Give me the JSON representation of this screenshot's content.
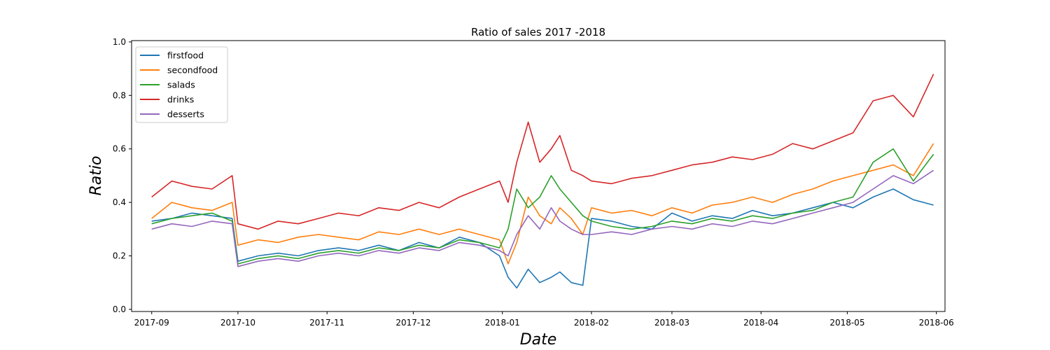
{
  "chart_data": {
    "type": "line",
    "title": "Ratio of sales 2017 -2018",
    "xlabel": "Date",
    "ylabel": "Ratio",
    "x_range": [
      "2017-08-25",
      "2018-06-04"
    ],
    "x_ticks": [
      "2017-09",
      "2017-10",
      "2017-11",
      "2017-12",
      "2018-01",
      "2018-02",
      "2018-03",
      "2018-04",
      "2018-05",
      "2018-06"
    ],
    "ylim": [
      -0.008,
      1.005
    ],
    "y_ticks": [
      "0.0",
      "0.2",
      "0.4",
      "0.6",
      "0.8",
      "1.0"
    ],
    "grid": false,
    "legend_position": "top-left",
    "series": [
      {
        "name": "firstfood",
        "color": "#1f77b4",
        "x": [
          "2017-09-01",
          "2017-09-08",
          "2017-09-15",
          "2017-09-22",
          "2017-09-29",
          "2017-10-01",
          "2017-10-08",
          "2017-10-15",
          "2017-10-22",
          "2017-10-29",
          "2017-11-05",
          "2017-11-12",
          "2017-11-19",
          "2017-11-26",
          "2017-12-03",
          "2017-12-10",
          "2017-12-17",
          "2017-12-24",
          "2017-12-31",
          "2018-01-03",
          "2018-01-06",
          "2018-01-10",
          "2018-01-14",
          "2018-01-18",
          "2018-01-21",
          "2018-01-25",
          "2018-01-29",
          "2018-02-01",
          "2018-02-08",
          "2018-02-15",
          "2018-02-22",
          "2018-03-01",
          "2018-03-08",
          "2018-03-15",
          "2018-03-22",
          "2018-03-29",
          "2018-04-05",
          "2018-04-12",
          "2018-04-19",
          "2018-04-26",
          "2018-05-03",
          "2018-05-10",
          "2018-05-17",
          "2018-05-24",
          "2018-05-31"
        ],
        "values": [
          0.33,
          0.34,
          0.36,
          0.35,
          0.34,
          0.18,
          0.2,
          0.21,
          0.2,
          0.22,
          0.23,
          0.22,
          0.24,
          0.22,
          0.25,
          0.23,
          0.27,
          0.25,
          0.2,
          0.12,
          0.08,
          0.15,
          0.1,
          0.12,
          0.14,
          0.1,
          0.09,
          0.34,
          0.33,
          0.31,
          0.3,
          0.36,
          0.33,
          0.35,
          0.34,
          0.37,
          0.35,
          0.36,
          0.38,
          0.4,
          0.38,
          0.42,
          0.45,
          0.41,
          0.39
        ]
      },
      {
        "name": "secondfood",
        "color": "#ff7f0e",
        "x": [
          "2017-09-01",
          "2017-09-08",
          "2017-09-15",
          "2017-09-22",
          "2017-09-29",
          "2017-10-01",
          "2017-10-08",
          "2017-10-15",
          "2017-10-22",
          "2017-10-29",
          "2017-11-05",
          "2017-11-12",
          "2017-11-19",
          "2017-11-26",
          "2017-12-03",
          "2017-12-10",
          "2017-12-17",
          "2017-12-24",
          "2017-12-31",
          "2018-01-03",
          "2018-01-06",
          "2018-01-10",
          "2018-01-14",
          "2018-01-18",
          "2018-01-21",
          "2018-01-25",
          "2018-01-29",
          "2018-02-01",
          "2018-02-08",
          "2018-02-15",
          "2018-02-22",
          "2018-03-01",
          "2018-03-08",
          "2018-03-15",
          "2018-03-22",
          "2018-03-29",
          "2018-04-05",
          "2018-04-12",
          "2018-04-19",
          "2018-04-26",
          "2018-05-03",
          "2018-05-10",
          "2018-05-17",
          "2018-05-24",
          "2018-05-31"
        ],
        "values": [
          0.34,
          0.4,
          0.38,
          0.37,
          0.4,
          0.24,
          0.26,
          0.25,
          0.27,
          0.28,
          0.27,
          0.26,
          0.29,
          0.28,
          0.3,
          0.28,
          0.3,
          0.28,
          0.26,
          0.17,
          0.25,
          0.42,
          0.35,
          0.32,
          0.38,
          0.34,
          0.28,
          0.38,
          0.36,
          0.37,
          0.35,
          0.38,
          0.36,
          0.39,
          0.4,
          0.42,
          0.4,
          0.43,
          0.45,
          0.48,
          0.5,
          0.52,
          0.54,
          0.5,
          0.62
        ]
      },
      {
        "name": "salads",
        "color": "#2ca02c",
        "x": [
          "2017-09-01",
          "2017-09-08",
          "2017-09-15",
          "2017-09-22",
          "2017-09-29",
          "2017-10-01",
          "2017-10-08",
          "2017-10-15",
          "2017-10-22",
          "2017-10-29",
          "2017-11-05",
          "2017-11-12",
          "2017-11-19",
          "2017-11-26",
          "2017-12-03",
          "2017-12-10",
          "2017-12-17",
          "2017-12-24",
          "2017-12-31",
          "2018-01-03",
          "2018-01-06",
          "2018-01-10",
          "2018-01-14",
          "2018-01-18",
          "2018-01-21",
          "2018-01-25",
          "2018-01-29",
          "2018-02-01",
          "2018-02-08",
          "2018-02-15",
          "2018-02-22",
          "2018-03-01",
          "2018-03-08",
          "2018-03-15",
          "2018-03-22",
          "2018-03-29",
          "2018-04-05",
          "2018-04-12",
          "2018-04-19",
          "2018-04-26",
          "2018-05-03",
          "2018-05-10",
          "2018-05-17",
          "2018-05-24",
          "2018-05-31"
        ],
        "values": [
          0.32,
          0.34,
          0.35,
          0.36,
          0.33,
          0.17,
          0.19,
          0.2,
          0.19,
          0.21,
          0.22,
          0.21,
          0.23,
          0.22,
          0.24,
          0.23,
          0.26,
          0.25,
          0.23,
          0.3,
          0.45,
          0.38,
          0.42,
          0.5,
          0.45,
          0.4,
          0.35,
          0.33,
          0.31,
          0.3,
          0.31,
          0.33,
          0.32,
          0.34,
          0.33,
          0.35,
          0.34,
          0.36,
          0.37,
          0.4,
          0.42,
          0.55,
          0.6,
          0.48,
          0.58
        ]
      },
      {
        "name": "drinks",
        "color": "#d62728",
        "x": [
          "2017-09-01",
          "2017-09-08",
          "2017-09-15",
          "2017-09-22",
          "2017-09-29",
          "2017-10-01",
          "2017-10-08",
          "2017-10-15",
          "2017-10-22",
          "2017-10-29",
          "2017-11-05",
          "2017-11-12",
          "2017-11-19",
          "2017-11-26",
          "2017-12-03",
          "2017-12-10",
          "2017-12-17",
          "2017-12-24",
          "2017-12-31",
          "2018-01-03",
          "2018-01-06",
          "2018-01-10",
          "2018-01-14",
          "2018-01-18",
          "2018-01-21",
          "2018-01-25",
          "2018-01-29",
          "2018-02-01",
          "2018-02-08",
          "2018-02-15",
          "2018-02-22",
          "2018-03-01",
          "2018-03-08",
          "2018-03-15",
          "2018-03-22",
          "2018-03-29",
          "2018-04-05",
          "2018-04-12",
          "2018-04-19",
          "2018-04-26",
          "2018-05-03",
          "2018-05-10",
          "2018-05-17",
          "2018-05-24",
          "2018-05-31"
        ],
        "values": [
          0.42,
          0.48,
          0.46,
          0.45,
          0.5,
          0.32,
          0.3,
          0.33,
          0.32,
          0.34,
          0.36,
          0.35,
          0.38,
          0.37,
          0.4,
          0.38,
          0.42,
          0.45,
          0.48,
          0.4,
          0.55,
          0.7,
          0.55,
          0.6,
          0.65,
          0.52,
          0.5,
          0.48,
          0.47,
          0.49,
          0.5,
          0.52,
          0.54,
          0.55,
          0.57,
          0.56,
          0.58,
          0.62,
          0.6,
          0.63,
          0.66,
          0.78,
          0.8,
          0.72,
          0.88
        ]
      },
      {
        "name": "desserts",
        "color": "#9467bd",
        "x": [
          "2017-09-01",
          "2017-09-08",
          "2017-09-15",
          "2017-09-22",
          "2017-09-29",
          "2017-10-01",
          "2017-10-08",
          "2017-10-15",
          "2017-10-22",
          "2017-10-29",
          "2017-11-05",
          "2017-11-12",
          "2017-11-19",
          "2017-11-26",
          "2017-12-03",
          "2017-12-10",
          "2017-12-17",
          "2017-12-24",
          "2017-12-31",
          "2018-01-03",
          "2018-01-06",
          "2018-01-10",
          "2018-01-14",
          "2018-01-18",
          "2018-01-21",
          "2018-01-25",
          "2018-01-29",
          "2018-02-01",
          "2018-02-08",
          "2018-02-15",
          "2018-02-22",
          "2018-03-01",
          "2018-03-08",
          "2018-03-15",
          "2018-03-22",
          "2018-03-29",
          "2018-04-05",
          "2018-04-12",
          "2018-04-19",
          "2018-04-26",
          "2018-05-03",
          "2018-05-10",
          "2018-05-17",
          "2018-05-24",
          "2018-05-31"
        ],
        "values": [
          0.3,
          0.32,
          0.31,
          0.33,
          0.32,
          0.16,
          0.18,
          0.19,
          0.18,
          0.2,
          0.21,
          0.2,
          0.22,
          0.21,
          0.23,
          0.22,
          0.25,
          0.24,
          0.22,
          0.2,
          0.28,
          0.35,
          0.3,
          0.38,
          0.33,
          0.3,
          0.28,
          0.28,
          0.29,
          0.28,
          0.3,
          0.31,
          0.3,
          0.32,
          0.31,
          0.33,
          0.32,
          0.34,
          0.36,
          0.38,
          0.4,
          0.45,
          0.5,
          0.47,
          0.52
        ]
      }
    ]
  }
}
